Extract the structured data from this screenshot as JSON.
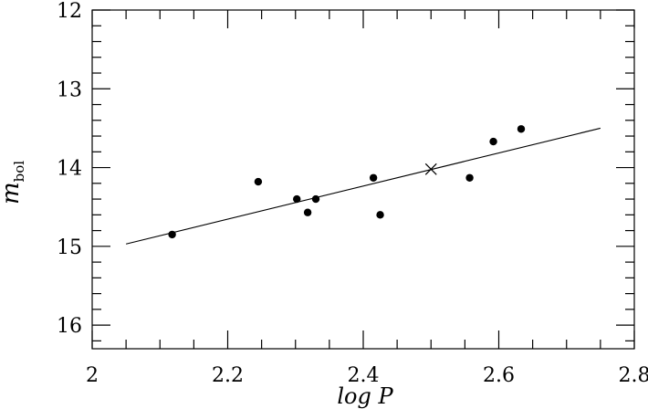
{
  "chart_data": {
    "type": "scatter",
    "title": "",
    "xlabel": "log  P",
    "ylabel": {
      "main": "m",
      "sub": "bol"
    },
    "xlim": [
      2.0,
      2.8
    ],
    "ylim": [
      16.3,
      12.0
    ],
    "y_inverted": true,
    "grid": false,
    "x_ticks": [
      {
        "value": 2.0,
        "label": "2"
      },
      {
        "value": 2.2,
        "label": "2.2"
      },
      {
        "value": 2.4,
        "label": "2.4"
      },
      {
        "value": 2.6,
        "label": "2.6"
      },
      {
        "value": 2.8,
        "label": "2.8"
      }
    ],
    "y_ticks": [
      {
        "value": 12,
        "label": "12"
      },
      {
        "value": 13,
        "label": "13"
      },
      {
        "value": 14,
        "label": "14"
      },
      {
        "value": 15,
        "label": "15"
      },
      {
        "value": 16,
        "label": "16"
      }
    ],
    "x_minor_step": 0.05,
    "y_minor_step": 0.2,
    "points": [
      {
        "x": 2.118,
        "y": 14.85
      },
      {
        "x": 2.245,
        "y": 14.18
      },
      {
        "x": 2.302,
        "y": 14.4
      },
      {
        "x": 2.318,
        "y": 14.57
      },
      {
        "x": 2.33,
        "y": 14.4
      },
      {
        "x": 2.415,
        "y": 14.13
      },
      {
        "x": 2.425,
        "y": 14.6
      },
      {
        "x": 2.557,
        "y": 14.13
      },
      {
        "x": 2.592,
        "y": 13.67
      },
      {
        "x": 2.633,
        "y": 13.51
      }
    ],
    "cross_marker": {
      "x": 2.5,
      "y": 14.02
    },
    "fit_line": {
      "x": [
        2.05,
        2.75
      ],
      "y": [
        14.97,
        13.5
      ]
    },
    "colors": {
      "axis": "#000000",
      "points": "#000000",
      "line": "#000000"
    }
  }
}
